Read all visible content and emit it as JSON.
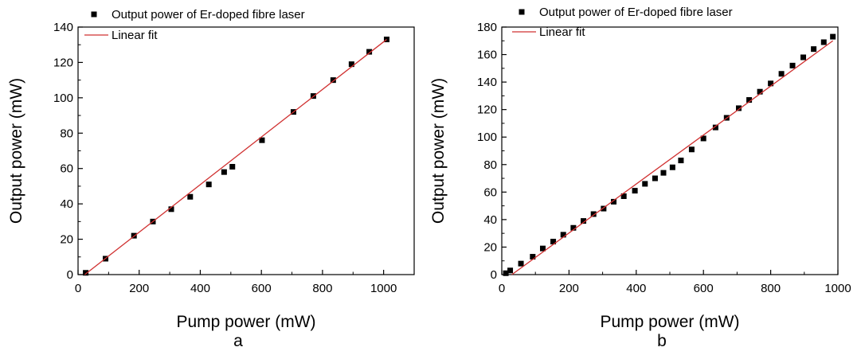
{
  "chart_data": [
    {
      "type": "scatter",
      "panel_label": "a",
      "xlabel": "Pump power (mW)",
      "ylabel": "Output power (mW)",
      "xlim": [
        0,
        1100
      ],
      "ylim": [
        0,
        140
      ],
      "xticks": [
        0,
        200,
        400,
        600,
        800,
        1000
      ],
      "yticks": [
        0,
        20,
        40,
        60,
        80,
        100,
        120,
        140
      ],
      "grid": false,
      "legend_position": "top-left",
      "series": [
        {
          "name": "Output power of Er-doped fibre laser",
          "kind": "scatter",
          "color": "#000000",
          "x": [
            25,
            90,
            183,
            245,
            305,
            367,
            428,
            478,
            505,
            602,
            705,
            770,
            835,
            895,
            953,
            1010
          ],
          "y": [
            1,
            9,
            22,
            30,
            37,
            44,
            51,
            58,
            61,
            76,
            92,
            101,
            110,
            119,
            126,
            133
          ]
        },
        {
          "name": "Linear fit",
          "kind": "line",
          "color": "#d03030",
          "x": [
            22,
            1010
          ],
          "y": [
            0,
            133
          ]
        }
      ]
    },
    {
      "type": "scatter",
      "panel_label": "b",
      "xlabel": "Pump power (mW)",
      "ylabel": "Output power (mW)",
      "xlim": [
        0,
        1000
      ],
      "ylim": [
        0,
        180
      ],
      "xticks": [
        0,
        200,
        400,
        600,
        800,
        1000
      ],
      "yticks": [
        0,
        20,
        40,
        60,
        80,
        100,
        120,
        140,
        160,
        180
      ],
      "grid": false,
      "legend_position": "top-left",
      "series": [
        {
          "name": "Output power of Er-doped fibre laser",
          "kind": "scatter",
          "color": "#000000",
          "x": [
            12,
            25,
            57,
            92,
            122,
            153,
            183,
            213,
            243,
            273,
            303,
            333,
            363,
            396,
            426,
            456,
            481,
            508,
            533,
            565,
            600,
            636,
            669,
            705,
            736,
            768,
            800,
            832,
            865,
            897,
            928,
            958,
            985
          ],
          "y": [
            1,
            3,
            8,
            13,
            19,
            24,
            29,
            34,
            39,
            44,
            48,
            53,
            57,
            61,
            66,
            70,
            74,
            78,
            83,
            91,
            99,
            107,
            114,
            121,
            127,
            133,
            139,
            146,
            152,
            158,
            164,
            169,
            173
          ]
        },
        {
          "name": "Linear fit",
          "kind": "line",
          "color": "#d03030",
          "x": [
            30,
            985
          ],
          "y": [
            0,
            170
          ]
        }
      ]
    }
  ]
}
